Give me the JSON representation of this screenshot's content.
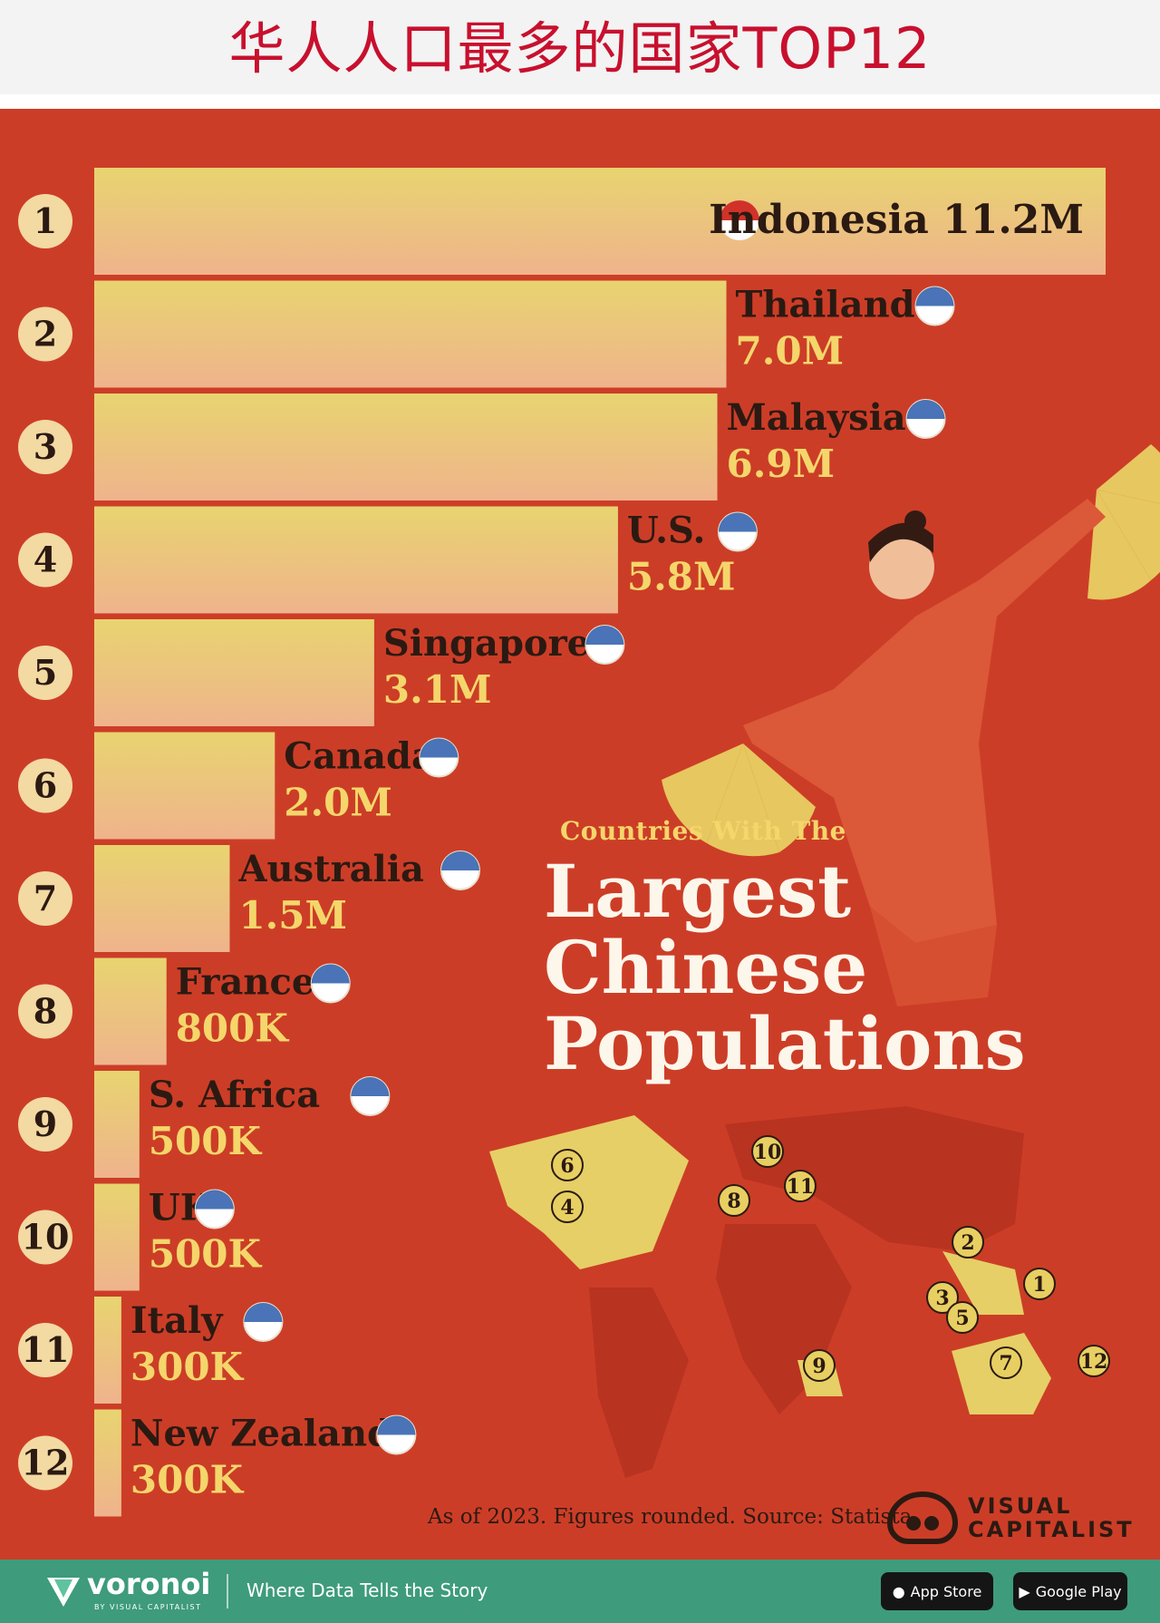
{
  "header": {
    "title": "华人人口最多的国家TOP12"
  },
  "chart_data": {
    "type": "bar",
    "orientation": "horizontal",
    "title": "Largest Chinese Populations",
    "subtitle": "Countries With The",
    "categories": [
      "Indonesia",
      "Thailand",
      "Malaysia",
      "U.S.",
      "Singapore",
      "Canada",
      "Australia",
      "France",
      "S. Africa",
      "UK",
      "Italy",
      "New Zealand"
    ],
    "ranks": [
      "1",
      "2",
      "3",
      "4",
      "5",
      "6",
      "7",
      "8",
      "9",
      "10",
      "11",
      "12"
    ],
    "values": [
      11.2,
      7.0,
      6.9,
      5.8,
      3.1,
      2.0,
      1.5,
      0.8,
      0.5,
      0.5,
      0.3,
      0.3
    ],
    "value_labels": [
      "11.2M",
      "7.0M",
      "6.9M",
      "5.8M",
      "3.1M",
      "2.0M",
      "1.5M",
      "800K",
      "500K",
      "500K",
      "300K",
      "300K"
    ],
    "unit": "millions",
    "xlim": [
      0,
      11.2
    ],
    "grid": false,
    "legend": "none"
  },
  "map": {
    "markers": [
      "6",
      "4",
      "10",
      "11",
      "8",
      "2",
      "1",
      "3",
      "5",
      "7",
      "12",
      "9"
    ]
  },
  "footnote": "As of 2023. Figures rounded. Source: Statista",
  "brand": {
    "line1": "VISUAL",
    "line2": "CAPITALIST"
  },
  "footer": {
    "logo": "voronoi",
    "logo_sub": "BY VISUAL CAPITALIST",
    "tagline": "Where Data Tells the Story",
    "app_store": "App Store",
    "google_play": "Google Play"
  },
  "colors": {
    "background": "#cc3d27",
    "bar_top": "#e8d470",
    "bar_bottom": "#efb38c",
    "label_dark": "#2b1a12",
    "value_light": "#f4d66b",
    "title_light": "#fdf6ea"
  }
}
